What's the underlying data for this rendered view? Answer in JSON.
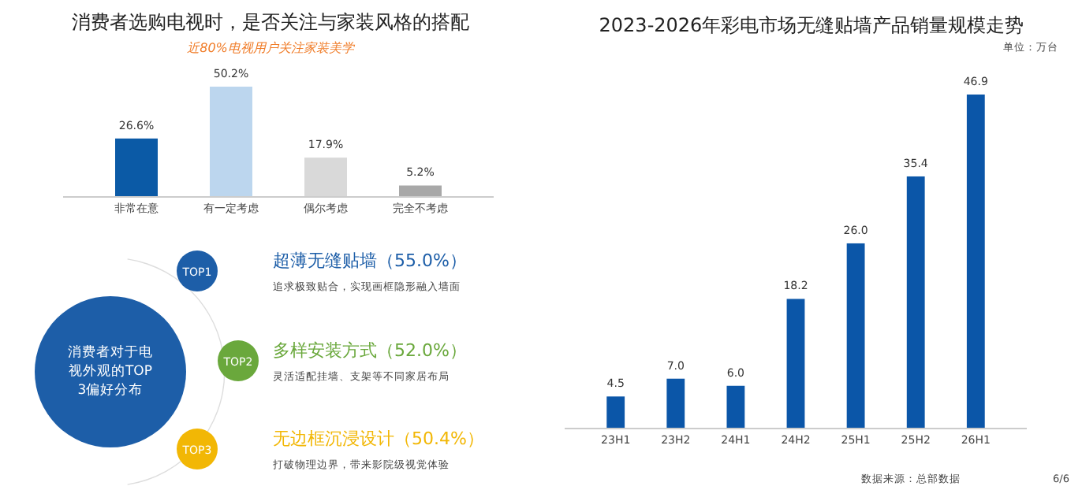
{
  "chart_data": [
    {
      "type": "bar",
      "title": "消费者选购电视时，是否关注与家装风格的搭配",
      "subtitle": "近80%电视用户关注家装美学",
      "categories": [
        "非常在意",
        "有一定考虑",
        "偶尔考虑",
        "完全不考虑"
      ],
      "values": [
        26.6,
        50.2,
        17.9,
        5.2
      ],
      "colors": [
        "#0b5aa6",
        "#bcd6ee",
        "#d9d9d9",
        "#a8a8a8"
      ],
      "value_labels": [
        "26.6%",
        "50.2%",
        "17.9%",
        "5.2%"
      ]
    },
    {
      "type": "other",
      "title": "消费者对于电视外观的TOP3偏好分布",
      "colors": [
        "#1d5ea8",
        "#6aa83c",
        "#f2b705"
      ],
      "annotations": [
        "TOP1",
        "超薄无缝贴墙（55.0%）",
        "追求极致贴合，实现画框隐形融入墙面",
        "TOP2",
        "多样安装方式（52.0%）",
        "灵活适配挂墙、支架等不同家居布局",
        "TOP3",
        "无边框沉浸设计（50.4%）",
        "打破物理边界，带来影院级视觉体验"
      ]
    },
    {
      "type": "bar",
      "title": "2023-2026年彩电市场无缝贴墙产品销量规模走势",
      "categories": [
        "23H1",
        "23H2",
        "24H1",
        "24H2",
        "25H1",
        "25H2",
        "26H1"
      ],
      "values": [
        4.5,
        7.0,
        6.0,
        18.2,
        26.0,
        35.4,
        46.9
      ],
      "color": "#0b56a8",
      "value_labels": [
        "4.5",
        "7.0",
        "6.0",
        "18.2",
        "26.0",
        "35.4",
        "46.9"
      ],
      "annotations": [
        "单位：万台",
        "数据来源：总部数据",
        "6/6"
      ]
    }
  ]
}
